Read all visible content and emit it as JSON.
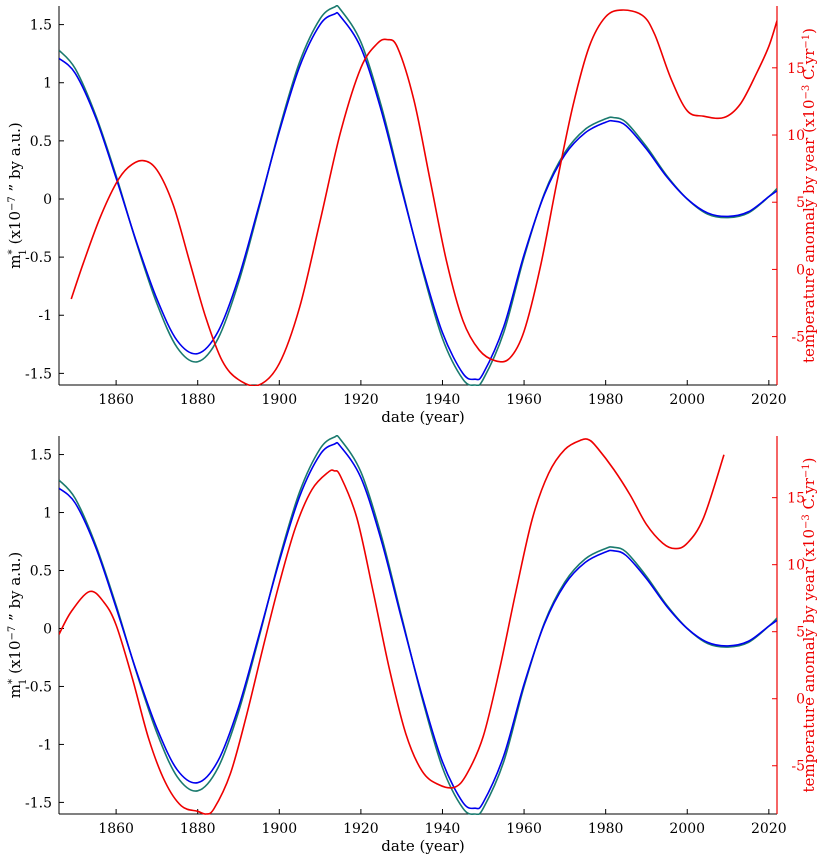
{
  "chart_data": [
    {
      "type": "line",
      "xlabel": "date (year)",
      "ylabel_left": "m*1 (x10^-7 \" by a.u.)",
      "ylabel_right": "temperature anomaly by year (x10^-3 C.yr^-1)",
      "xlim": [
        1846,
        2022
      ],
      "ylim_left": [
        -1.6,
        1.66
      ],
      "ylim_right": [
        -8.6,
        19.6
      ],
      "x_ticks": [
        1860,
        1880,
        1900,
        1920,
        1940,
        1960,
        1980,
        2000,
        2020
      ],
      "y_ticks_left": [
        -1.5,
        -1,
        -0.5,
        0,
        0.5,
        1,
        1.5
      ],
      "y_ticks_right": [
        -5,
        0,
        5,
        10,
        15
      ],
      "x_tick_labels": [
        "1860",
        "1880",
        "1900",
        "1920",
        "1940",
        "1960",
        "1980",
        "2000",
        "2020"
      ],
      "y_tick_labels_left": [
        "-1.5",
        "-1",
        "-0.5",
        "0",
        "0.5",
        "1",
        "1.5"
      ],
      "y_tick_labels_right": [
        "-5",
        "0",
        "5",
        "10",
        "15"
      ],
      "series": [
        {
          "color": "#1a7a6e",
          "axis": "left",
          "x": [
            1846,
            1850,
            1855,
            1860,
            1865,
            1870,
            1875,
            1880,
            1885,
            1890,
            1895,
            1900,
            1905,
            1910,
            1913.5,
            1915,
            1920,
            1925,
            1930,
            1935,
            1940,
            1945,
            1948,
            1950,
            1955,
            1960,
            1965,
            1970,
            1975,
            1980,
            1982,
            1985,
            1990,
            1995,
            2000,
            2005,
            2010,
            2015,
            2020,
            2022
          ],
          "y": [
            1.28,
            1.12,
            0.72,
            0.2,
            -0.38,
            -0.9,
            -1.28,
            -1.4,
            -1.2,
            -0.72,
            -0.08,
            0.6,
            1.18,
            1.55,
            1.65,
            1.63,
            1.35,
            0.8,
            0.1,
            -0.6,
            -1.2,
            -1.55,
            -1.6,
            -1.55,
            -1.15,
            -0.5,
            0.05,
            0.4,
            0.6,
            0.69,
            0.7,
            0.66,
            0.45,
            0.2,
            0.0,
            -0.13,
            -0.16,
            -0.12,
            0.02,
            0.09
          ]
        },
        {
          "color": "#0000ee",
          "axis": "left",
          "x": [
            1846,
            1850,
            1855,
            1860,
            1865,
            1870,
            1875,
            1880,
            1885,
            1890,
            1895,
            1900,
            1905,
            1910,
            1913.5,
            1915,
            1920,
            1925,
            1930,
            1935,
            1940,
            1945,
            1948,
            1950,
            1955,
            1960,
            1965,
            1970,
            1975,
            1980,
            1982,
            1985,
            1990,
            1995,
            2000,
            2005,
            2010,
            2015,
            2020,
            2022
          ],
          "y": [
            1.21,
            1.08,
            0.7,
            0.18,
            -0.37,
            -0.86,
            -1.22,
            -1.33,
            -1.14,
            -0.68,
            -0.06,
            0.58,
            1.14,
            1.5,
            1.59,
            1.57,
            1.3,
            0.76,
            0.08,
            -0.58,
            -1.15,
            -1.5,
            -1.55,
            -1.5,
            -1.1,
            -0.48,
            0.04,
            0.38,
            0.57,
            0.66,
            0.67,
            0.63,
            0.43,
            0.19,
            0.0,
            -0.12,
            -0.15,
            -0.11,
            0.02,
            0.07
          ]
        },
        {
          "color": "#ee0000",
          "axis": "right",
          "x": [
            1849,
            1852,
            1856,
            1860,
            1863,
            1866.5,
            1870,
            1874,
            1878,
            1882,
            1886,
            1890,
            1895,
            1900,
            1905,
            1910,
            1915,
            1920,
            1924,
            1926.5,
            1929,
            1933,
            1937,
            1941,
            1945,
            1949,
            1953,
            1956.5,
            1960,
            1964,
            1968,
            1972,
            1976,
            1980,
            1984,
            1989,
            1992,
            1996,
            2000,
            2004,
            2009,
            2013,
            2017,
            2020,
            2022
          ],
          "y": [
            -2.2,
            0.5,
            3.8,
            6.4,
            7.6,
            8.1,
            7.4,
            4.8,
            0.6,
            -3.6,
            -6.8,
            -8.2,
            -8.6,
            -7.0,
            -2.8,
            3.6,
            10.2,
            15.0,
            16.8,
            17.1,
            16.5,
            12.6,
            6.6,
            0.6,
            -3.8,
            -6.0,
            -6.8,
            -6.6,
            -4.6,
            0.2,
            6.4,
            12.2,
            16.6,
            18.8,
            19.3,
            18.9,
            17.5,
            14.2,
            11.8,
            11.4,
            11.3,
            12.3,
            14.6,
            16.6,
            18.5
          ]
        }
      ]
    },
    {
      "type": "line",
      "xlabel": "date (year)",
      "ylabel_left": "m*1 (x10^-7 \" by a.u.)",
      "ylabel_right": "temperature anomaly by year (x10^-3 C.yr^-1)",
      "xlim": [
        1846,
        2022
      ],
      "ylim_left": [
        -1.6,
        1.66
      ],
      "ylim_right": [
        -8.6,
        19.6
      ],
      "x_ticks": [
        1860,
        1880,
        1900,
        1920,
        1940,
        1960,
        1980,
        2000,
        2020
      ],
      "y_ticks_left": [
        -1.5,
        -1,
        -0.5,
        0,
        0.5,
        1,
        1.5
      ],
      "y_ticks_right": [
        -5,
        0,
        5,
        10,
        15
      ],
      "x_tick_labels": [
        "1860",
        "1880",
        "1900",
        "1920",
        "1940",
        "1960",
        "1980",
        "2000",
        "2020"
      ],
      "y_tick_labels_left": [
        "-1.5",
        "-1",
        "-0.5",
        "0",
        "0.5",
        "1",
        "1.5"
      ],
      "y_tick_labels_right": [
        "-5",
        "0",
        "5",
        "10",
        "15"
      ],
      "series": [
        {
          "color": "#1a7a6e",
          "axis": "left",
          "x": [
            1846,
            1850,
            1855,
            1860,
            1865,
            1870,
            1875,
            1880,
            1885,
            1890,
            1895,
            1900,
            1905,
            1910,
            1913.5,
            1915,
            1920,
            1925,
            1930,
            1935,
            1940,
            1945,
            1948,
            1950,
            1955,
            1960,
            1965,
            1970,
            1975,
            1980,
            1982,
            1985,
            1990,
            1995,
            2000,
            2005,
            2010,
            2015,
            2020,
            2022
          ],
          "y": [
            1.28,
            1.12,
            0.72,
            0.2,
            -0.38,
            -0.9,
            -1.28,
            -1.4,
            -1.2,
            -0.72,
            -0.08,
            0.6,
            1.18,
            1.55,
            1.65,
            1.63,
            1.35,
            0.8,
            0.1,
            -0.6,
            -1.2,
            -1.55,
            -1.6,
            -1.55,
            -1.15,
            -0.5,
            0.05,
            0.4,
            0.6,
            0.69,
            0.7,
            0.66,
            0.45,
            0.2,
            0.0,
            -0.13,
            -0.16,
            -0.12,
            0.02,
            0.09
          ]
        },
        {
          "color": "#0000ee",
          "axis": "left",
          "x": [
            1846,
            1850,
            1855,
            1860,
            1865,
            1870,
            1875,
            1880,
            1885,
            1890,
            1895,
            1900,
            1905,
            1910,
            1913.5,
            1915,
            1920,
            1925,
            1930,
            1935,
            1940,
            1945,
            1948,
            1950,
            1955,
            1960,
            1965,
            1970,
            1975,
            1980,
            1982,
            1985,
            1990,
            1995,
            2000,
            2005,
            2010,
            2015,
            2020,
            2022
          ],
          "y": [
            1.21,
            1.08,
            0.7,
            0.18,
            -0.37,
            -0.86,
            -1.22,
            -1.33,
            -1.14,
            -0.68,
            -0.06,
            0.58,
            1.14,
            1.5,
            1.59,
            1.57,
            1.3,
            0.76,
            0.08,
            -0.58,
            -1.15,
            -1.5,
            -1.55,
            -1.5,
            -1.1,
            -0.48,
            0.04,
            0.38,
            0.57,
            0.66,
            0.67,
            0.63,
            0.43,
            0.19,
            0.0,
            -0.12,
            -0.15,
            -0.11,
            0.02,
            0.07
          ]
        },
        {
          "color": "#ee0000",
          "axis": "right",
          "x": [
            1846,
            1849,
            1853.5,
            1857,
            1860,
            1864,
            1868,
            1872,
            1876,
            1880,
            1882,
            1884,
            1888,
            1892,
            1896,
            1900,
            1904,
            1908,
            1912,
            1913.5,
            1915,
            1919,
            1923,
            1927,
            1931,
            1935,
            1939,
            1943,
            1946,
            1950,
            1954,
            1958,
            1962,
            1966,
            1970,
            1974,
            1976,
            1978,
            1982,
            1986,
            1990,
            1994,
            1997,
            2000,
            2004,
            2009
          ],
          "y": [
            4.8,
            6.5,
            8.0,
            7.2,
            5.5,
            1.5,
            -3.0,
            -6.2,
            -8.0,
            -8.4,
            -8.6,
            -8.2,
            -5.6,
            -1.2,
            3.8,
            8.6,
            12.8,
            15.6,
            16.9,
            17.0,
            16.6,
            13.5,
            8.0,
            2.2,
            -2.6,
            -5.4,
            -6.4,
            -6.6,
            -5.6,
            -2.8,
            2.2,
            8.0,
            13.4,
            16.8,
            18.6,
            19.3,
            19.3,
            18.7,
            17.1,
            15.2,
            13.0,
            11.6,
            11.2,
            11.6,
            13.5,
            18.2
          ]
        }
      ]
    }
  ]
}
